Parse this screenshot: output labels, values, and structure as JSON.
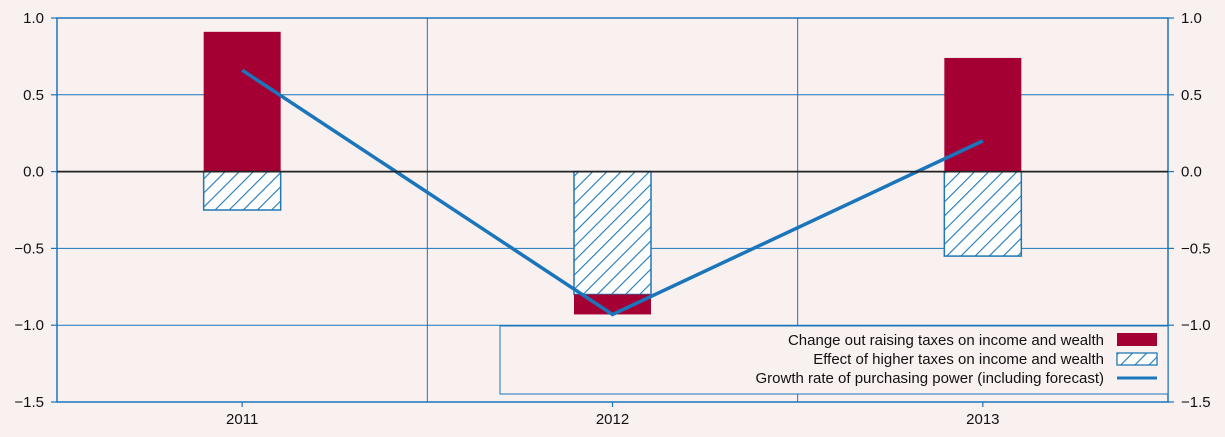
{
  "chart_data": {
    "type": "bar",
    "categories": [
      "2011",
      "2012",
      "2013"
    ],
    "ylim": [
      -1.5,
      1.0
    ],
    "y_ticks": [
      "1.0",
      "0.5",
      "0.0",
      "−0.5",
      "−1.0",
      "−1.5"
    ],
    "y_tick_values": [
      1.0,
      0.5,
      0.0,
      -0.5,
      -1.0,
      -1.5
    ],
    "grid": true,
    "legend_position": "bottom-right",
    "series": [
      {
        "name": "Change out raising taxes on income and wealth",
        "kind": "bar-solid",
        "color": "#a50034",
        "values": [
          0.91,
          -0.13,
          0.74
        ]
      },
      {
        "name": "Effect of higher taxes on income and wealth",
        "kind": "bar-hatched",
        "color": "#1f78b4",
        "values": [
          -0.25,
          -0.8,
          -0.55
        ]
      },
      {
        "name": "Growth rate of purchasing power (including forecast)",
        "kind": "line",
        "color": "#1a75bb",
        "values": [
          0.66,
          -0.93,
          0.2
        ]
      }
    ],
    "legend": [
      "Change out raising taxes on income and wealth",
      "Effect of higher taxes on income and wealth",
      "Growth rate of purchasing power (including forecast)"
    ]
  }
}
